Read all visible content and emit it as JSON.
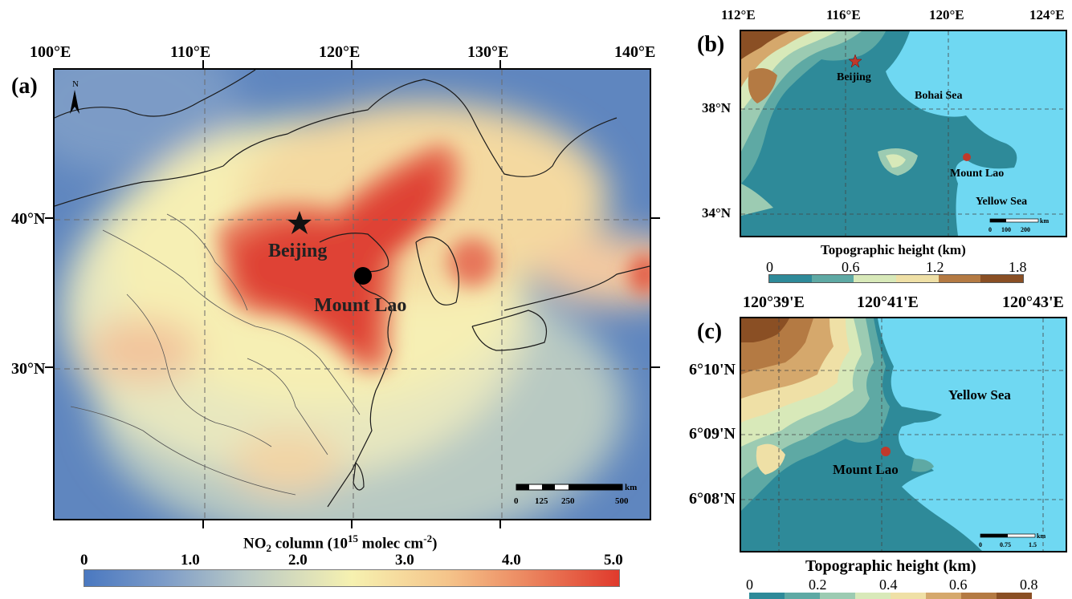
{
  "panel_a": {
    "letter": "(a)",
    "lon_labels": [
      "100°E",
      "110°E",
      "120°E",
      "130°E",
      "140°E"
    ],
    "lat_labels": [
      "40°N",
      "30°N"
    ],
    "north": "N",
    "places": {
      "beijing": "Beijing",
      "mount_lao": "Mount Lao"
    },
    "scale": {
      "unit": "km",
      "ticks": [
        "0",
        "125",
        "250",
        "500"
      ]
    },
    "colorbar": {
      "title_main": "NO",
      "title_sub": "2",
      "title_rest": " column (10",
      "title_sup": "15",
      "title_end": " molec cm",
      "title_sup2": "-2",
      "title_close": ")",
      "ticks": [
        "0",
        "1.0",
        "2.0",
        "3.0",
        "4.0",
        "5.0"
      ],
      "color_low": "#4a78c0",
      "color_mid": "#f6f1b0",
      "color_high": "#e03a2c"
    }
  },
  "panel_b": {
    "letter": "(b)",
    "lon_labels": [
      "112°E",
      "116°E",
      "120°E",
      "124°E"
    ],
    "lat_labels": [
      "38°N",
      "34°N"
    ],
    "places": {
      "beijing": "Beijing",
      "bohai": "Bohai Sea",
      "mount_lao": "Mount Lao",
      "yellow": "Yellow Sea"
    },
    "scale": {
      "unit": "km",
      "ticks": [
        "0",
        "100",
        "200"
      ]
    },
    "colorbar": {
      "title": "Topographic height (km)",
      "ticks": [
        "0",
        "0.6",
        "1.2",
        "1.8"
      ]
    }
  },
  "panel_c": {
    "letter": "(c)",
    "lon_labels": [
      "120°39'E",
      "120°41'E",
      "120°43'E"
    ],
    "lat_labels": [
      "6°10'N",
      "6°09'N",
      "6°08'N"
    ],
    "places": {
      "yellow": "Yellow Sea",
      "mount_lao": "Mount Lao"
    },
    "scale": {
      "unit": "km",
      "ticks": [
        "0",
        "0.75",
        "1.5"
      ]
    },
    "colorbar": {
      "title": "Topographic height (km)",
      "ticks": [
        "0",
        "0.2",
        "0.4",
        "0.6",
        "0.8"
      ]
    }
  },
  "colors": {
    "sea": "#6fd8f2",
    "topo": [
      "#2e8a99",
      "#5ea9a4",
      "#9ccbb2",
      "#d8e9b9",
      "#efe0a6",
      "#d5a86c",
      "#b47a43",
      "#8a4f24"
    ]
  }
}
